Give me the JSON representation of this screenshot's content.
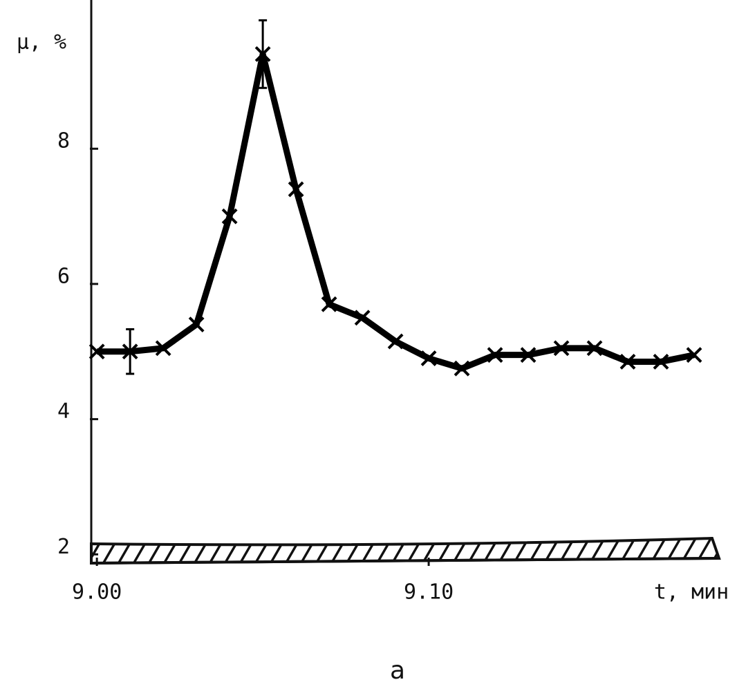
{
  "chart_data": {
    "type": "line",
    "ylabel": "μ, %",
    "xlabel": "t, мин",
    "caption": "а",
    "x": [
      0,
      1,
      2,
      3,
      4,
      5,
      6,
      7,
      8,
      9,
      10,
      11,
      12,
      13,
      14,
      15,
      16,
      17,
      18
    ],
    "series": [
      {
        "color": "#000000",
        "values": [
          5.0,
          5.0,
          5.05,
          5.4,
          7.0,
          9.4,
          7.4,
          5.7,
          5.5,
          5.15,
          4.9,
          4.75,
          4.95,
          4.95,
          5.05,
          5.05,
          4.85,
          4.85,
          4.95
        ],
        "errors": [
          null,
          0.33,
          null,
          null,
          null,
          0.5,
          null,
          null,
          null,
          null,
          null,
          null,
          null,
          null,
          null,
          null,
          null,
          null,
          null
        ]
      }
    ],
    "xlim": [
      -0.17,
      18.75
    ],
    "ylim": [
      1.87,
      10.2
    ],
    "xticks": [
      {
        "value": 0,
        "label": "9.00"
      },
      {
        "value": 10,
        "label": "9.10"
      }
    ],
    "yticks": [
      2,
      4,
      6,
      8
    ],
    "grid": false
  }
}
